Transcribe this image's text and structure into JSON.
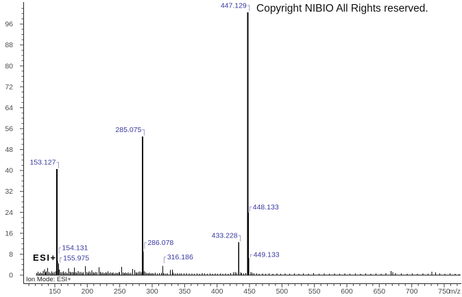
{
  "title": "Copyright NIBIO All Rights reserved.",
  "annotations": {
    "mode_label": "ESI+",
    "ion_mode_note": "Ion Mode: ESI+"
  },
  "colors": {
    "peak": "#000000",
    "peak_label": "#3737a2",
    "leader": "#9a9ac4",
    "axis": "#222222",
    "tick_label": "#4a4a4a",
    "background": "#ffffff"
  },
  "chart_data": {
    "type": "bar",
    "subtype": "mass-spectrum-stick-plot",
    "title": "Copyright NIBIO All Rights reserved.",
    "xlabel": "m/z",
    "ylabel": "",
    "xlim": [
      102,
      778
    ],
    "ylim": [
      0,
      104
    ],
    "grid": false,
    "legend": "none",
    "x_major_ticks": [
      150,
      200,
      250,
      300,
      350,
      400,
      450,
      500,
      550,
      600,
      650,
      700,
      750
    ],
    "x_minor_tick_step": 10,
    "y_major_tick_step": 8,
    "y_label_max": 96,
    "y_minor_tick_step": 2,
    "y_minor_tick_max": 102,
    "y_tick_labels": [
      0,
      8,
      16,
      24,
      32,
      40,
      48,
      56,
      64,
      72,
      80,
      88,
      96
    ],
    "labeled_peaks": [
      {
        "mz": 153.127,
        "intensity": 40.5,
        "label": "153.127",
        "label_side": "tl",
        "label_dy": 0
      },
      {
        "mz": 154.131,
        "intensity": 5.5,
        "label": "154.131",
        "label_side": "r",
        "label_dy": -11
      },
      {
        "mz": 155.975,
        "intensity": 4.5,
        "label": "155.975",
        "label_side": "r",
        "label_dy": 0
      },
      {
        "mz": 285.075,
        "intensity": 53,
        "label": "285.075",
        "label_side": "tl",
        "label_dy": 0
      },
      {
        "mz": 286.078,
        "intensity": 9,
        "label": "286.078",
        "label_side": "r",
        "label_dy": -5
      },
      {
        "mz": 316.186,
        "intensity": 3.5,
        "label": "316.186",
        "label_side": "r",
        "label_dy": -5
      },
      {
        "mz": 433.228,
        "intensity": 12.5,
        "label": "433.228",
        "label_side": "tl",
        "label_dy": 0
      },
      {
        "mz": 447.129,
        "intensity": 100.5,
        "label": "447.129",
        "label_side": "tl",
        "label_dy": 0
      },
      {
        "mz": 448.133,
        "intensity": 24,
        "label": "448.133",
        "label_side": "r",
        "label_dy": 0
      },
      {
        "mz": 449.133,
        "intensity": 6.5,
        "label": "449.133",
        "label_side": "r",
        "label_dy": 3
      }
    ],
    "noise_peaks": [
      [
        122,
        0.8
      ],
      [
        124,
        1.3
      ],
      [
        126,
        0.7
      ],
      [
        128,
        1.1
      ],
      [
        130,
        0.8
      ],
      [
        132,
        1.6
      ],
      [
        134,
        2.2
      ],
      [
        136,
        1.0
      ],
      [
        137,
        1.4
      ],
      [
        139,
        2.8
      ],
      [
        141,
        1.2
      ],
      [
        143,
        0.8
      ],
      [
        145,
        1.5
      ],
      [
        147,
        0.9
      ],
      [
        149,
        1.2
      ],
      [
        151,
        1.4
      ],
      [
        157,
        2.1
      ],
      [
        159,
        1.2
      ],
      [
        161,
        1.0
      ],
      [
        163,
        1.5
      ],
      [
        165,
        0.9
      ],
      [
        167,
        1.2
      ],
      [
        169,
        0.8
      ],
      [
        171,
        2.6
      ],
      [
        173,
        1.3
      ],
      [
        175,
        1.0
      ],
      [
        177,
        1.2
      ],
      [
        179,
        1.0
      ],
      [
        180,
        2.9
      ],
      [
        182,
        1.1
      ],
      [
        184,
        0.9
      ],
      [
        186,
        1.6
      ],
      [
        188,
        1.0
      ],
      [
        190,
        1.2
      ],
      [
        192,
        0.9
      ],
      [
        194,
        1.1
      ],
      [
        197,
        3.4
      ],
      [
        199,
        1.2
      ],
      [
        201,
        0.9
      ],
      [
        203,
        1.4
      ],
      [
        205,
        1.0
      ],
      [
        207,
        1.8
      ],
      [
        209,
        1.1
      ],
      [
        211,
        0.9
      ],
      [
        213,
        1.2
      ],
      [
        215,
        1.0
      ],
      [
        218,
        3.0
      ],
      [
        220,
        1.3
      ],
      [
        222,
        0.9
      ],
      [
        224,
        1.1
      ],
      [
        226,
        0.8
      ],
      [
        228,
        1.0
      ],
      [
        230,
        0.9
      ],
      [
        232,
        1.4
      ],
      [
        234,
        0.8
      ],
      [
        236,
        1.1
      ],
      [
        238,
        0.8
      ],
      [
        240,
        1.0
      ],
      [
        242,
        0.7
      ],
      [
        244,
        0.9
      ],
      [
        246,
        0.8
      ],
      [
        248,
        1.0
      ],
      [
        250,
        1.2
      ],
      [
        253,
        3.1
      ],
      [
        255,
        1.0
      ],
      [
        257,
        0.8
      ],
      [
        259,
        1.1
      ],
      [
        261,
        0.8
      ],
      [
        263,
        1.0
      ],
      [
        265,
        0.7
      ],
      [
        267,
        0.9
      ],
      [
        270,
        2.4
      ],
      [
        273,
        2.0
      ],
      [
        275,
        1.1
      ],
      [
        277,
        0.9
      ],
      [
        279,
        1.2
      ],
      [
        281,
        1.4
      ],
      [
        283,
        1.0
      ],
      [
        288,
        1.5
      ],
      [
        290,
        1.0
      ],
      [
        292,
        0.8
      ],
      [
        294,
        0.7
      ],
      [
        296,
        0.9
      ],
      [
        298,
        0.7
      ],
      [
        300,
        0.8
      ],
      [
        302,
        0.6
      ],
      [
        305,
        0.9
      ],
      [
        308,
        0.7
      ],
      [
        311,
        0.8
      ],
      [
        314,
        0.9
      ],
      [
        318,
        0.8
      ],
      [
        321,
        0.7
      ],
      [
        324,
        0.6
      ],
      [
        328,
        1.9
      ],
      [
        331,
        2.1
      ],
      [
        333,
        0.9
      ],
      [
        336,
        0.7
      ],
      [
        339,
        0.8
      ],
      [
        342,
        0.6
      ],
      [
        345,
        0.7
      ],
      [
        349,
        0.6
      ],
      [
        353,
        0.8
      ],
      [
        357,
        0.6
      ],
      [
        361,
        0.7
      ],
      [
        365,
        0.5
      ],
      [
        369,
        0.7
      ],
      [
        373,
        0.5
      ],
      [
        377,
        0.8
      ],
      [
        381,
        0.6
      ],
      [
        385,
        0.5
      ],
      [
        389,
        0.7
      ],
      [
        393,
        0.5
      ],
      [
        397,
        0.6
      ],
      [
        401,
        0.5
      ],
      [
        405,
        0.7
      ],
      [
        409,
        0.5
      ],
      [
        413,
        0.6
      ],
      [
        417,
        0.5
      ],
      [
        421,
        0.8
      ],
      [
        425,
        1.0
      ],
      [
        428,
        1.2
      ],
      [
        430,
        0.9
      ],
      [
        436,
        1.1
      ],
      [
        438,
        0.8
      ],
      [
        441,
        0.7
      ],
      [
        444,
        0.8
      ],
      [
        452,
        1.2
      ],
      [
        454,
        0.9
      ],
      [
        457,
        0.7
      ],
      [
        461,
        0.6
      ],
      [
        465,
        0.5
      ],
      [
        470,
        0.7
      ],
      [
        475,
        0.5
      ],
      [
        480,
        0.6
      ],
      [
        486,
        0.5
      ],
      [
        492,
        0.7
      ],
      [
        498,
        0.5
      ],
      [
        505,
        0.6
      ],
      [
        512,
        0.5
      ],
      [
        519,
        0.7
      ],
      [
        526,
        0.5
      ],
      [
        533,
        0.6
      ],
      [
        541,
        0.5
      ],
      [
        549,
        0.8
      ],
      [
        557,
        0.5
      ],
      [
        565,
        0.6
      ],
      [
        573,
        0.5
      ],
      [
        581,
        0.7
      ],
      [
        589,
        0.5
      ],
      [
        597,
        0.6
      ],
      [
        605,
        0.5
      ],
      [
        613,
        0.6
      ],
      [
        621,
        0.5
      ],
      [
        629,
        0.7
      ],
      [
        637,
        0.5
      ],
      [
        645,
        0.6
      ],
      [
        653,
        0.5
      ],
      [
        660,
        0.8
      ],
      [
        668,
        1.6
      ],
      [
        671,
        1.2
      ],
      [
        675,
        0.8
      ],
      [
        684,
        0.6
      ],
      [
        693,
        0.5
      ],
      [
        701,
        0.7
      ],
      [
        709,
        0.5
      ],
      [
        717,
        0.6
      ],
      [
        725,
        0.5
      ],
      [
        731,
        1.3
      ],
      [
        737,
        1.1
      ],
      [
        743,
        0.6
      ],
      [
        751,
        0.5
      ],
      [
        759,
        0.6
      ],
      [
        767,
        0.5
      ],
      [
        773,
        0.4
      ]
    ]
  }
}
